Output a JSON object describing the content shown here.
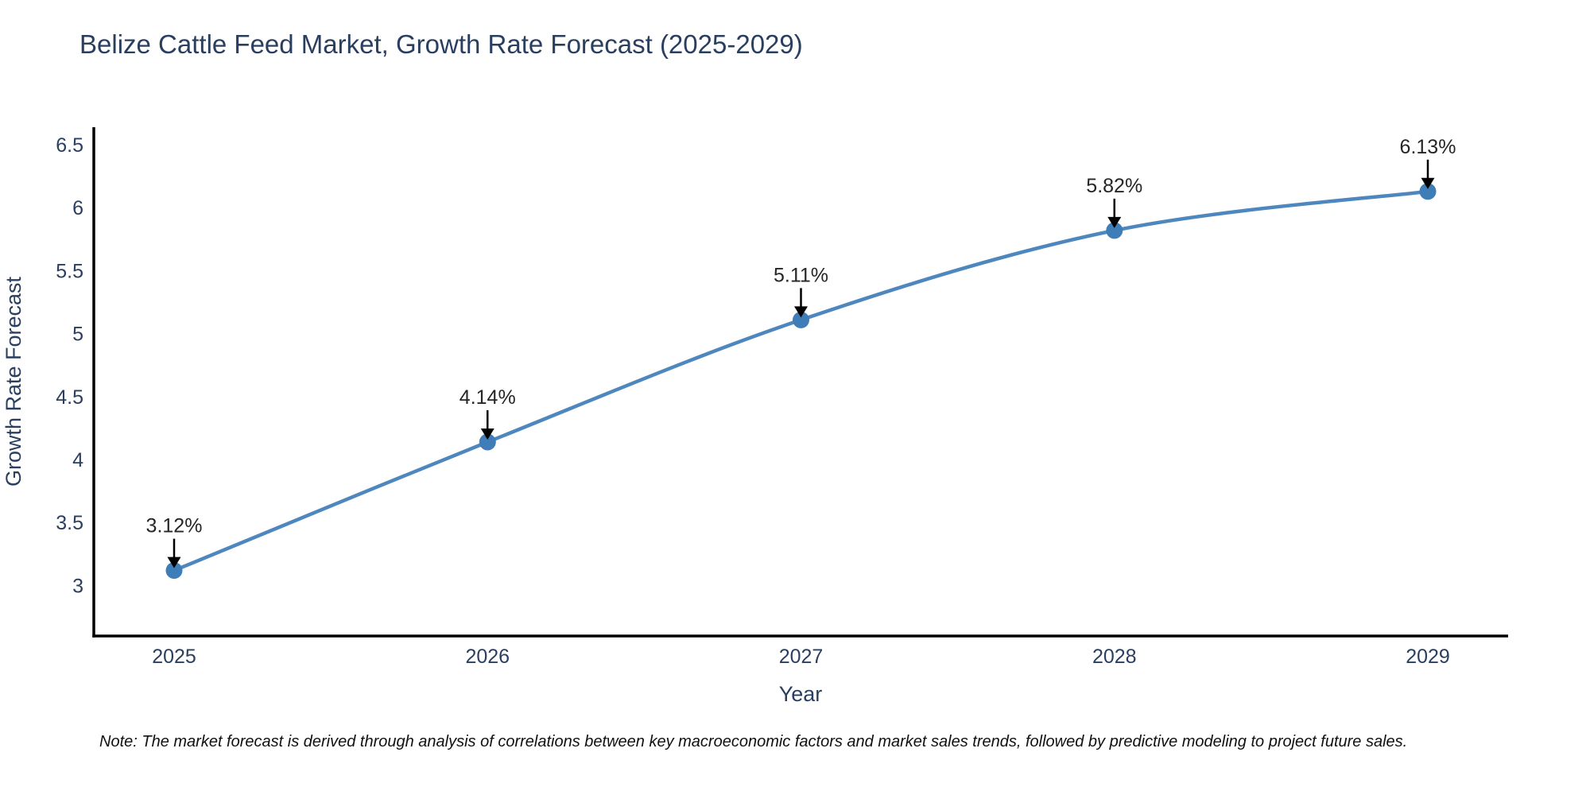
{
  "title": "Belize Cattle Feed Market, Growth Rate Forecast (2025-2029)",
  "note": "Note: The market forecast is derived through analysis of correlations between key macroeconomic factors and market sales trends, followed by predictive modeling to project future sales.",
  "chart_data": {
    "type": "line",
    "title": "Belize Cattle Feed Market, Growth Rate Forecast (2025-2029)",
    "xlabel": "Year",
    "ylabel": "Growth Rate Forecast",
    "x": [
      2025,
      2026,
      2027,
      2028,
      2029
    ],
    "series": [
      {
        "name": "Growth Rate Forecast",
        "values": [
          3.12,
          4.14,
          5.11,
          5.82,
          6.13
        ]
      }
    ],
    "point_labels": [
      "3.12%",
      "4.14%",
      "5.11%",
      "5.82%",
      "6.13%"
    ],
    "yticks": [
      3,
      3.5,
      4,
      4.5,
      5,
      5.5,
      6,
      6.5
    ],
    "ylim": [
      2.6,
      6.64
    ],
    "grid": false,
    "legend": "none",
    "line_shape": "spline",
    "colors": {
      "line": "#4d87bd",
      "marker": "#3f7db8",
      "axis": "#000000",
      "tick_label": "#2a3f5f",
      "axis_title": "#2a3f5f",
      "chart_title": "#2a3f5f",
      "annotation_text": "#262626",
      "annotation_arrow": "#000000",
      "background": "#ffffff"
    }
  }
}
